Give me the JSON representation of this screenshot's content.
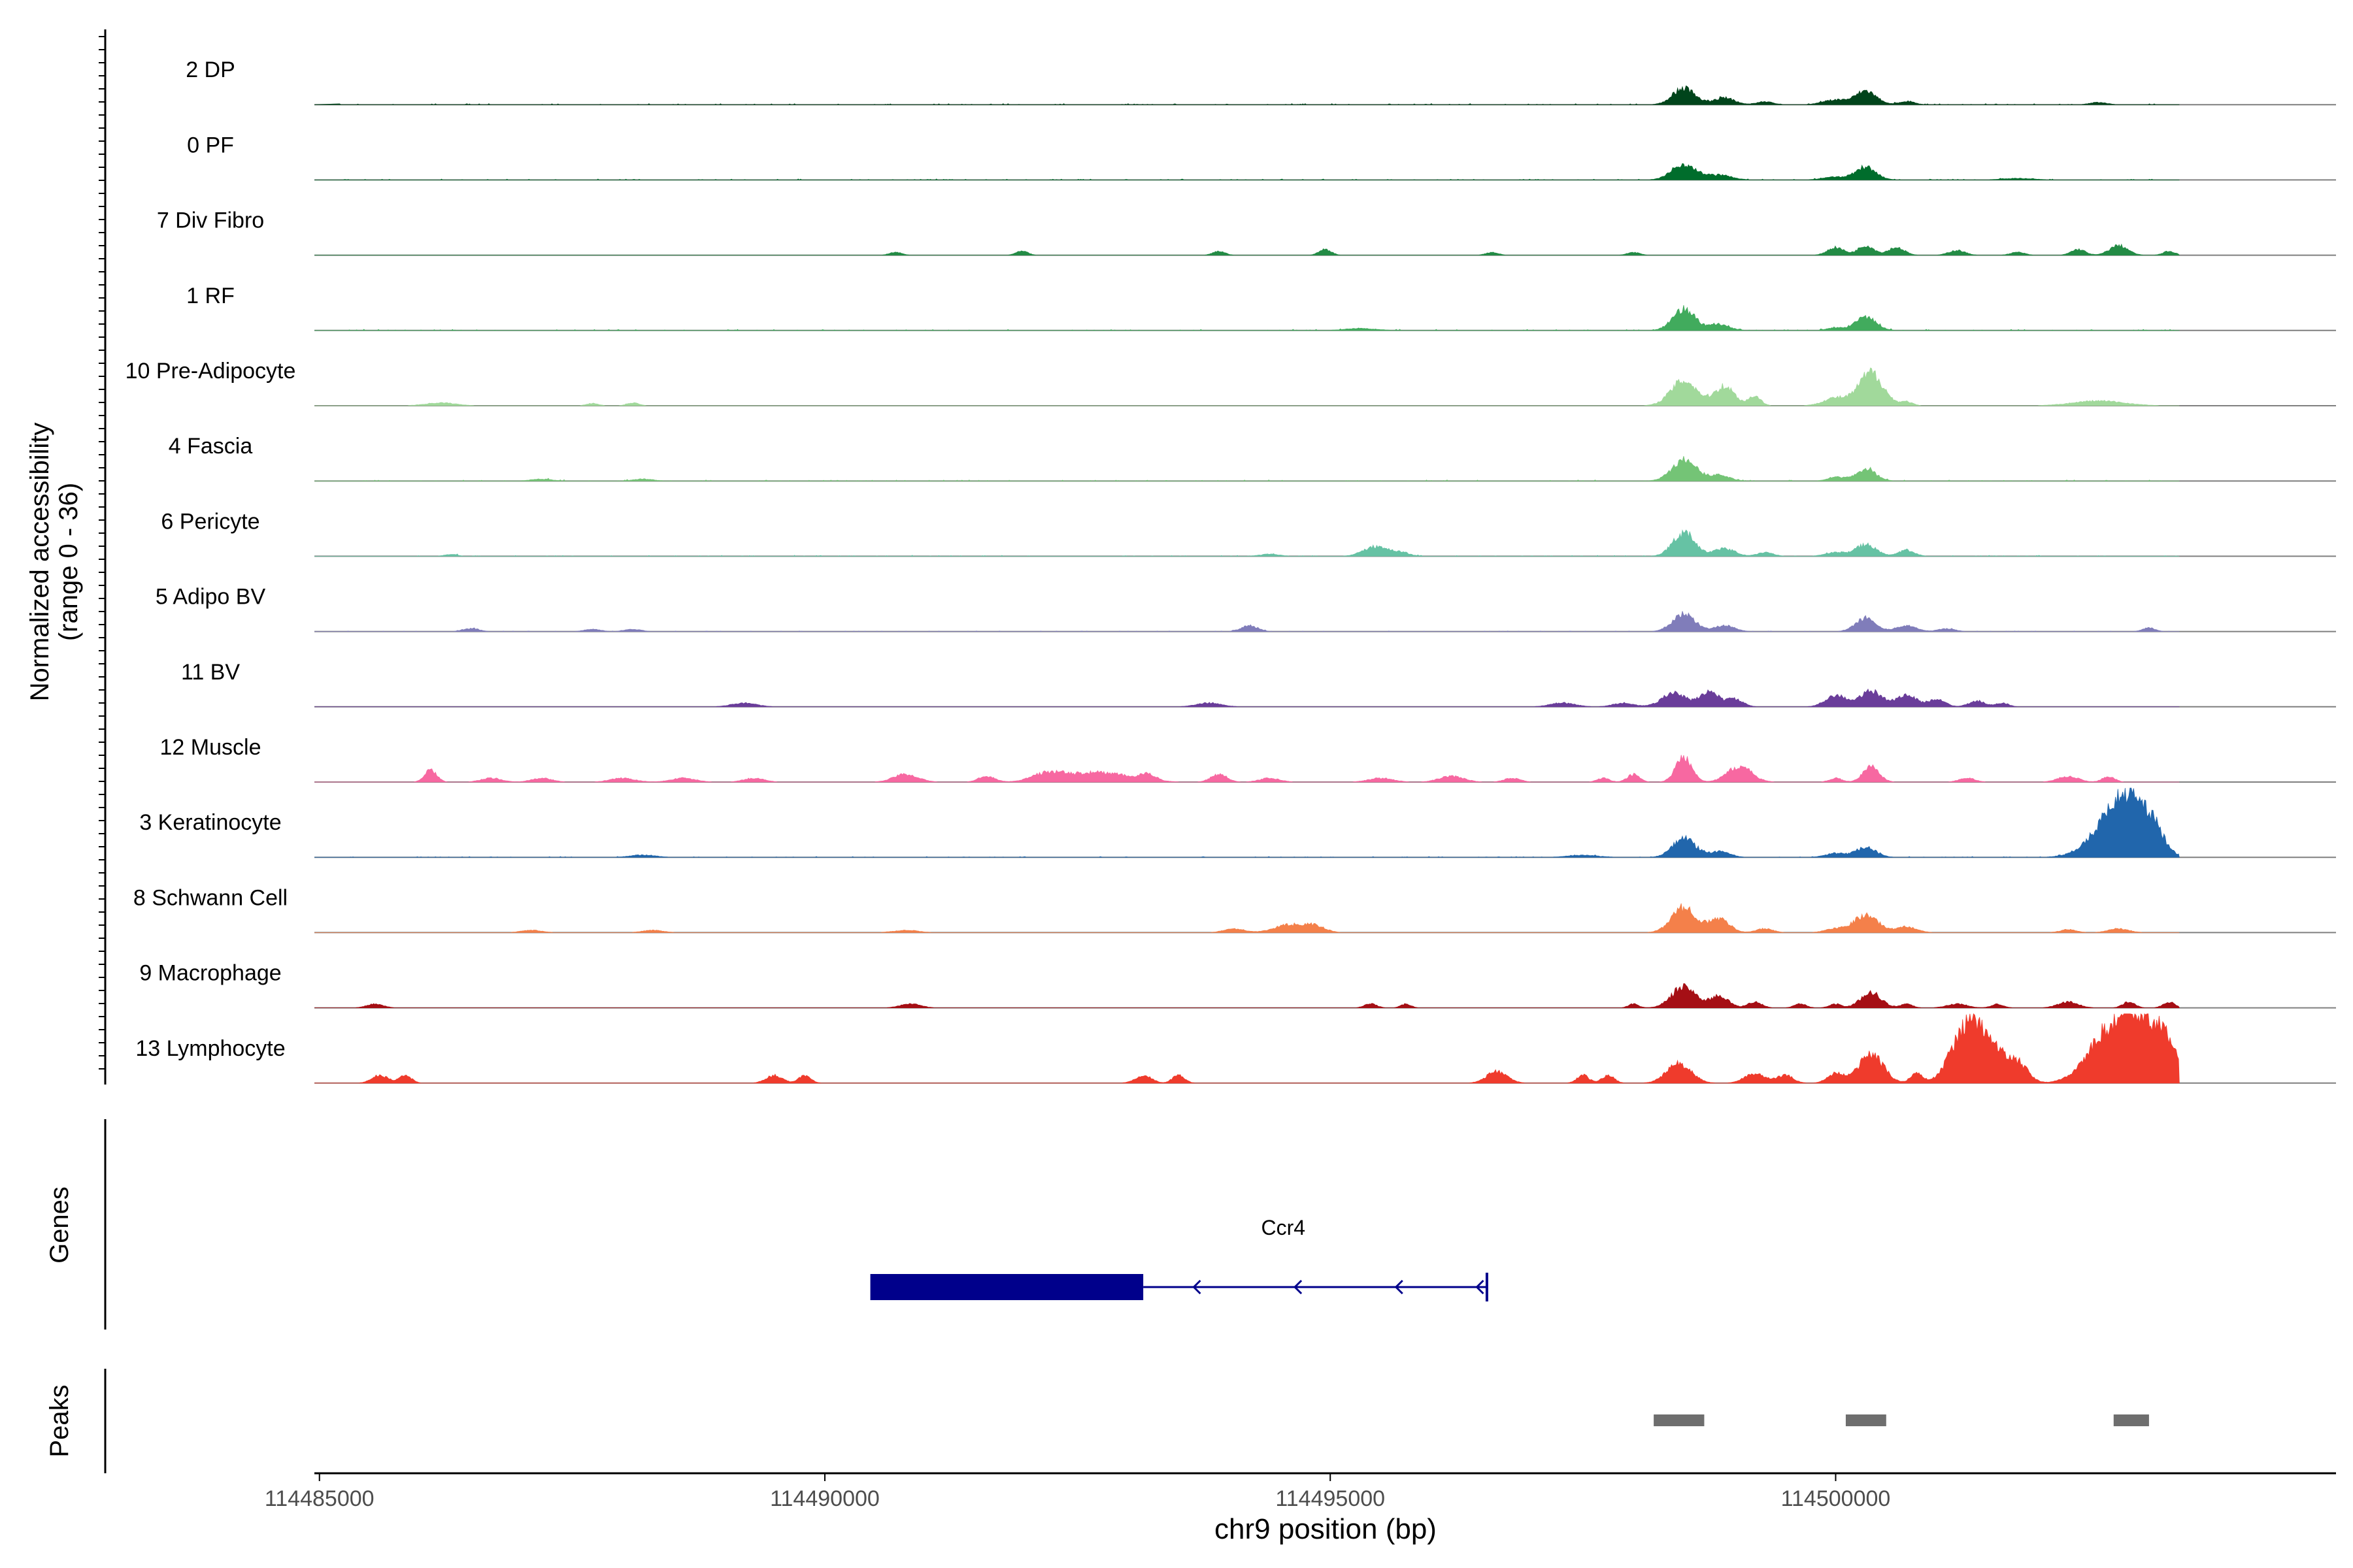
{
  "chart_data": {
    "type": "area",
    "title": "",
    "xlabel": "chr9 position (bp)",
    "ylabel_line1": "Normalized accessibility",
    "ylabel_line2": "(range 0 - 36)",
    "ylim": [
      0,
      36
    ],
    "xlim": [
      114484950,
      114504950
    ],
    "x_ticks": [
      114485000,
      114490000,
      114495000,
      114500000
    ],
    "x_tick_labels": [
      "114485000",
      "114490000",
      "114495000",
      "114500000"
    ],
    "tracks": [
      {
        "name": "2 DP",
        "color": "#00441b",
        "noise": 0.35,
        "peaks": [
          [
            114498500,
            8.5,
            110
          ],
          [
            114498900,
            3.5,
            100
          ],
          [
            114499300,
            1.5,
            80
          ],
          [
            114500000,
            2.5,
            120
          ],
          [
            114500300,
            7,
            100
          ],
          [
            114500700,
            1.5,
            80
          ],
          [
            114502600,
            1.2,
            80
          ]
        ]
      },
      {
        "name": "0 PF",
        "color": "#006d2c",
        "noise": 0.3,
        "peaks": [
          [
            114498500,
            8,
            120
          ],
          [
            114498850,
            2.5,
            120
          ],
          [
            114500000,
            1.5,
            120
          ],
          [
            114500300,
            6.5,
            100
          ],
          [
            114501800,
            0.8,
            150
          ]
        ]
      },
      {
        "name": "7 Div Fibro",
        "color": "#238b45",
        "noise": 0,
        "peaks": [
          [
            114490700,
            1.5,
            60
          ],
          [
            114491950,
            2,
            60
          ],
          [
            114493900,
            2,
            60
          ],
          [
            114494950,
            3,
            60
          ],
          [
            114496600,
            1.5,
            60
          ],
          [
            114498000,
            1.5,
            60
          ],
          [
            114500000,
            4,
            80
          ],
          [
            114500300,
            5,
            80
          ],
          [
            114500600,
            4,
            80
          ],
          [
            114501200,
            2.5,
            80
          ],
          [
            114501800,
            1.5,
            70
          ],
          [
            114502400,
            3,
            70
          ],
          [
            114502800,
            5,
            90
          ],
          [
            114503300,
            2,
            60
          ]
        ]
      },
      {
        "name": "1 RF",
        "color": "#41ab5d",
        "noise": 0.35,
        "peaks": [
          [
            114498500,
            11,
            110
          ],
          [
            114498850,
            3,
            100
          ],
          [
            114500000,
            1.5,
            80
          ],
          [
            114500300,
            7,
            100
          ],
          [
            114495300,
            1,
            150
          ]
        ]
      },
      {
        "name": "10 Pre-Adipocyte",
        "color": "#a1d99b",
        "noise": 0,
        "peaks": [
          [
            114486200,
            1.5,
            150
          ],
          [
            114487700,
            1.2,
            60
          ],
          [
            114488100,
            1.5,
            60
          ],
          [
            114498500,
            13,
            130
          ],
          [
            114498900,
            10,
            100
          ],
          [
            114499200,
            5,
            60
          ],
          [
            114500000,
            4,
            120
          ],
          [
            114500350,
            17,
            120
          ],
          [
            114500700,
            2,
            60
          ],
          [
            114502600,
            2.5,
            250
          ]
        ]
      },
      {
        "name": "4 Fascia",
        "color": "#74c476",
        "noise": 0.35,
        "peaks": [
          [
            114498500,
            11,
            120
          ],
          [
            114498850,
            3,
            100
          ],
          [
            114500000,
            2,
            80
          ],
          [
            114500300,
            6,
            100
          ],
          [
            114487200,
            1,
            100
          ],
          [
            114488200,
            1,
            100
          ]
        ]
      },
      {
        "name": "6 Pericyte",
        "color": "#66c2a4",
        "noise": 0.3,
        "peaks": [
          [
            114495450,
            5,
            120
          ],
          [
            114495700,
            2,
            80
          ],
          [
            114498500,
            12,
            110
          ],
          [
            114498900,
            4,
            100
          ],
          [
            114499300,
            2,
            80
          ],
          [
            114500000,
            2,
            100
          ],
          [
            114500300,
            6,
            100
          ],
          [
            114500700,
            3,
            80
          ],
          [
            114494400,
            1,
            100
          ],
          [
            114486300,
            1,
            60
          ]
        ]
      },
      {
        "name": "5 Adipo BV",
        "color": "#807dba",
        "noise": 0.2,
        "peaks": [
          [
            114486500,
            1.5,
            80
          ],
          [
            114487700,
            1.2,
            80
          ],
          [
            114488100,
            1.2,
            80
          ],
          [
            114494200,
            3,
            80
          ],
          [
            114498500,
            9,
            110
          ],
          [
            114498900,
            3,
            100
          ],
          [
            114500300,
            7,
            100
          ],
          [
            114500700,
            3,
            100
          ],
          [
            114501100,
            1.5,
            80
          ],
          [
            114503100,
            2,
            60
          ]
        ]
      },
      {
        "name": "11 BV",
        "color": "#6a3d9a",
        "noise": 0,
        "peaks": [
          [
            114489200,
            2,
            120
          ],
          [
            114493800,
            2,
            120
          ],
          [
            114497300,
            2,
            120
          ],
          [
            114497900,
            2,
            100
          ],
          [
            114498400,
            7,
            120
          ],
          [
            114498750,
            8,
            90
          ],
          [
            114499000,
            4,
            80
          ],
          [
            114500000,
            6,
            100
          ],
          [
            114500350,
            8,
            110
          ],
          [
            114500700,
            6,
            100
          ],
          [
            114501000,
            4,
            80
          ],
          [
            114501400,
            3,
            80
          ],
          [
            114501650,
            2,
            60
          ]
        ]
      },
      {
        "name": "12 Muscle",
        "color": "#f768a1",
        "noise": 0,
        "peaks": [
          [
            114486100,
            6,
            60
          ],
          [
            114486700,
            2,
            100
          ],
          [
            114487200,
            2,
            100
          ],
          [
            114488000,
            2,
            120
          ],
          [
            114488600,
            2,
            120
          ],
          [
            114489300,
            2,
            100
          ],
          [
            114490800,
            4,
            120
          ],
          [
            114491600,
            3,
            80
          ],
          [
            114492200,
            4,
            150
          ],
          [
            114492700,
            5,
            300
          ],
          [
            114493200,
            3,
            80
          ],
          [
            114493900,
            4,
            80
          ],
          [
            114494400,
            2,
            100
          ],
          [
            114495500,
            2,
            120
          ],
          [
            114496200,
            3,
            120
          ],
          [
            114496800,
            2,
            80
          ],
          [
            114497700,
            2,
            60
          ],
          [
            114498000,
            4,
            60
          ],
          [
            114498500,
            13,
            80
          ],
          [
            114499050,
            8,
            120
          ],
          [
            114500000,
            2,
            60
          ],
          [
            114500350,
            8,
            80
          ],
          [
            114501300,
            2,
            80
          ],
          [
            114502300,
            3,
            100
          ],
          [
            114502700,
            3,
            60
          ]
        ]
      },
      {
        "name": "3 Keratinocyte",
        "color": "#2166ac",
        "noise": 0.25,
        "peaks": [
          [
            114488200,
            1.2,
            120
          ],
          [
            114498500,
            10,
            110
          ],
          [
            114498850,
            3,
            100
          ],
          [
            114500000,
            2,
            100
          ],
          [
            114500300,
            5,
            100
          ],
          [
            114502700,
            15,
            200
          ],
          [
            114502950,
            24,
            180
          ],
          [
            114503150,
            6,
            100
          ],
          [
            114497500,
            1,
            150
          ]
        ]
      },
      {
        "name": "8 Schwann Cell",
        "color": "#f4804a",
        "noise": 0,
        "peaks": [
          [
            114487100,
            1.2,
            100
          ],
          [
            114488300,
            1.2,
            100
          ],
          [
            114490800,
            1.2,
            120
          ],
          [
            114494050,
            2,
            100
          ],
          [
            114494600,
            4,
            150
          ],
          [
            114494850,
            3,
            100
          ],
          [
            114498500,
            13,
            120
          ],
          [
            114498850,
            7,
            100
          ],
          [
            114499300,
            2,
            80
          ],
          [
            114500000,
            2,
            100
          ],
          [
            114500300,
            9,
            120
          ],
          [
            114500700,
            3,
            100
          ],
          [
            114502300,
            1.5,
            80
          ],
          [
            114502800,
            2,
            100
          ]
        ]
      },
      {
        "name": "9 Macrophage",
        "color": "#a50f15",
        "noise": 0,
        "peaks": [
          [
            114485550,
            2,
            80
          ],
          [
            114490850,
            2,
            100
          ],
          [
            114495400,
            2,
            60
          ],
          [
            114495750,
            2,
            50
          ],
          [
            114498000,
            2,
            50
          ],
          [
            114498500,
            11,
            120
          ],
          [
            114498850,
            6,
            90
          ],
          [
            114499200,
            3,
            70
          ],
          [
            114499650,
            2,
            60
          ],
          [
            114500000,
            2,
            60
          ],
          [
            114500350,
            8,
            100
          ],
          [
            114500700,
            2,
            60
          ],
          [
            114501200,
            2,
            100
          ],
          [
            114501600,
            2,
            60
          ],
          [
            114502300,
            3,
            100
          ],
          [
            114502900,
            3,
            60
          ],
          [
            114503300,
            3,
            60
          ]
        ]
      },
      {
        "name": "13 Lymphocyte",
        "color": "#ef3b2c",
        "noise": 0,
        "peaks": [
          [
            114485600,
            4,
            80
          ],
          [
            114485850,
            4,
            60
          ],
          [
            114489500,
            4,
            80
          ],
          [
            114489800,
            4,
            60
          ],
          [
            114493150,
            4,
            80
          ],
          [
            114493500,
            4,
            60
          ],
          [
            114496650,
            6,
            100
          ],
          [
            114497500,
            4,
            60
          ],
          [
            114497750,
            4,
            60
          ],
          [
            114498450,
            10,
            120
          ],
          [
            114499200,
            5,
            100
          ],
          [
            114499500,
            4,
            80
          ],
          [
            114500000,
            5,
            80
          ],
          [
            114500350,
            15,
            120
          ],
          [
            114500800,
            5,
            60
          ],
          [
            114501300,
            30,
            150
          ],
          [
            114501550,
            15,
            120
          ],
          [
            114501800,
            10,
            100
          ],
          [
            114502650,
            18,
            200
          ],
          [
            114502950,
            28,
            200
          ],
          [
            114503250,
            18,
            150
          ]
        ]
      }
    ],
    "genes_label": "Genes",
    "gene": {
      "name": "Ccr4",
      "exon_start": 114490450,
      "exon_end": 114493150,
      "intron_end": 114496550,
      "strand": "-",
      "color": "#00008b"
    },
    "peaks_label": "Peaks",
    "peak_regions": [
      [
        114498200,
        114498700
      ],
      [
        114500100,
        114500500
      ],
      [
        114502750,
        114503100
      ]
    ]
  }
}
